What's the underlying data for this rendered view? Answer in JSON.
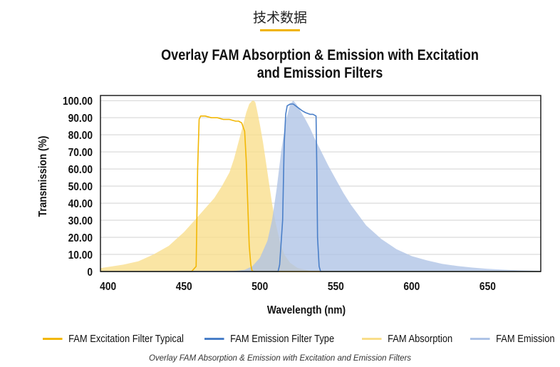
{
  "header": {
    "title": "技术数据"
  },
  "chart_data": {
    "type": "area",
    "title": "Overlay FAM Absorption & Emission with Excitation and Emission Filters",
    "caption": "Overlay FAM Absorption & Emission with Excitation and Emission Filters",
    "xlabel": "Wavelength (nm)",
    "ylabel": "Transmission (%)",
    "xlim": [
      395,
      685
    ],
    "ylim": [
      0,
      103
    ],
    "xticks": [
      "400",
      "450",
      "500",
      "550",
      "600",
      "650"
    ],
    "yticks": [
      "0",
      "10.00",
      "20.00",
      "30.00",
      "40.00",
      "50.00",
      "60.00",
      "70.00",
      "80.00",
      "90.00",
      "100.00"
    ],
    "grid": "horizontal",
    "legend_position": "bottom",
    "colors": {
      "excitation_filter": "#f2b705",
      "emission_filter": "#4a7fc8",
      "absorption_fill": "#f9de8a",
      "emission_fill": "#aec3e6"
    },
    "series": [
      {
        "name": "FAM Excitation Filter Typical",
        "style": "line",
        "x": [
          395,
          455,
          458,
          459,
          460,
          461,
          464,
          468,
          472,
          476,
          480,
          484,
          486,
          488,
          490,
          491,
          492,
          493,
          494,
          494.8,
          496,
          685
        ],
        "y": [
          0,
          0,
          3,
          60,
          89,
          91,
          91,
          90,
          90,
          89,
          89,
          88,
          88,
          87,
          82,
          65,
          40,
          15,
          4,
          0.5,
          0,
          0
        ]
      },
      {
        "name": "FAM Emission Filter Type",
        "style": "line",
        "x": [
          395,
          512,
          513,
          515,
          516,
          517,
          518,
          520,
          522,
          525,
          528,
          530,
          533,
          535,
          537,
          537.5,
          538,
          539,
          540,
          685
        ],
        "y": [
          0,
          0,
          4,
          30,
          75,
          92,
          97,
          98,
          98,
          96,
          94,
          93,
          92,
          92,
          91,
          60,
          20,
          3,
          0,
          0
        ]
      },
      {
        "name": "FAM Absorption",
        "style": "area",
        "x": [
          395,
          410,
          420,
          430,
          440,
          450,
          458,
          465,
          470,
          475,
          480,
          483,
          486,
          489,
          491,
          493,
          495,
          496,
          497,
          498,
          500,
          502,
          504,
          506,
          508,
          510,
          513,
          516,
          520,
          525,
          530,
          535
        ],
        "y": [
          2,
          4,
          6,
          10,
          15,
          23,
          31,
          38,
          43,
          50,
          58,
          66,
          76,
          86,
          93,
          98,
          100,
          100,
          99,
          95,
          86,
          76,
          64,
          52,
          40,
          30,
          18,
          10,
          5,
          2,
          1,
          0
        ]
      },
      {
        "name": "FAM Emission",
        "style": "area",
        "x": [
          480,
          490,
          495,
          500,
          505,
          508,
          511,
          514,
          517,
          520,
          522,
          524,
          526,
          528,
          530,
          533,
          536,
          540,
          545,
          550,
          555,
          560,
          565,
          570,
          580,
          590,
          600,
          610,
          620,
          630,
          640,
          650,
          660,
          670,
          685
        ],
        "y": [
          0,
          1,
          3,
          8,
          18,
          30,
          48,
          70,
          88,
          98,
          100,
          98,
          95,
          92,
          89,
          84,
          78,
          71,
          62,
          54,
          46,
          39,
          33,
          27,
          19,
          13,
          9,
          6.5,
          4.5,
          3.2,
          2.3,
          1.6,
          1.1,
          0.7,
          0.4
        ]
      }
    ]
  }
}
